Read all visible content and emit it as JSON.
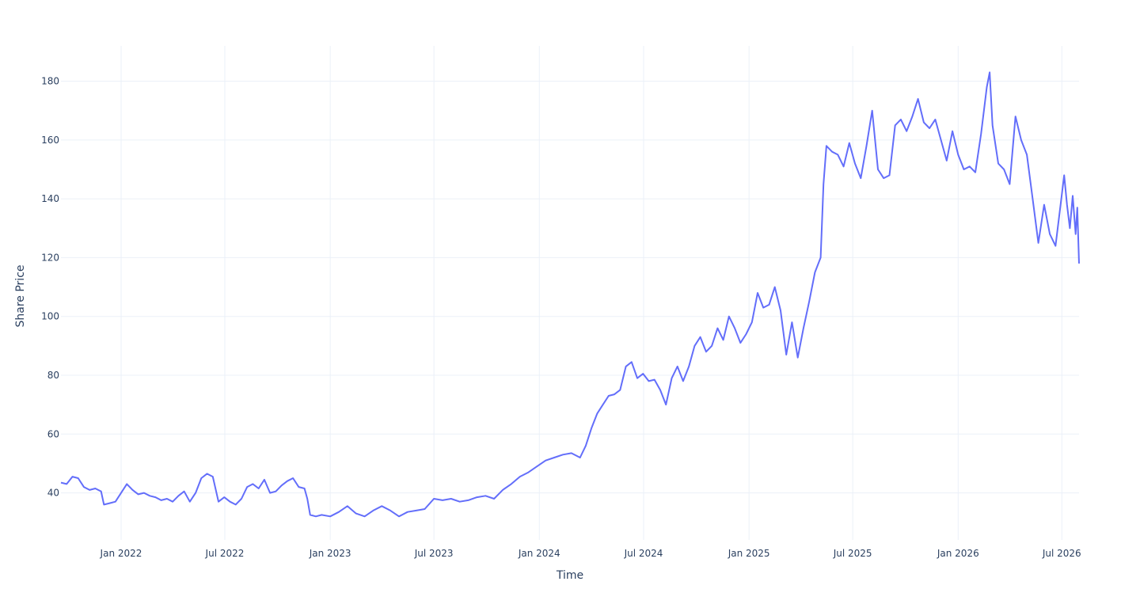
{
  "chart_data": {
    "type": "line",
    "title": "",
    "xlabel": "Time",
    "ylabel": "Share Price",
    "x_range": [
      "2021-09-18",
      "2026-07-31"
    ],
    "y_range": [
      24,
      192
    ],
    "y_ticks": [
      40,
      60,
      80,
      100,
      120,
      140,
      160,
      180
    ],
    "x_ticks": [
      {
        "date": "2022-01-01",
        "label": "Jan 2022"
      },
      {
        "date": "2022-07-01",
        "label": "Jul 2022"
      },
      {
        "date": "2023-01-01",
        "label": "Jan 2023"
      },
      {
        "date": "2023-07-01",
        "label": "Jul 2023"
      },
      {
        "date": "2024-01-01",
        "label": "Jan 2024"
      },
      {
        "date": "2024-07-01",
        "label": "Jul 2024"
      },
      {
        "date": "2025-01-01",
        "label": "Jan 2025"
      },
      {
        "date": "2025-07-01",
        "label": "Jul 2025"
      },
      {
        "date": "2026-01-01",
        "label": "Jan 2026"
      },
      {
        "date": "2026-07-01",
        "label": "Jul 2026"
      }
    ],
    "grid": true,
    "legend": "none",
    "line_color": "#636efa",
    "series": [
      {
        "name": "",
        "points": [
          [
            "2021-09-18",
            43.5
          ],
          [
            "2021-09-28",
            43.0
          ],
          [
            "2021-10-08",
            45.5
          ],
          [
            "2021-10-18",
            45.0
          ],
          [
            "2021-10-28",
            42.0
          ],
          [
            "2021-11-07",
            41.0
          ],
          [
            "2021-11-17",
            41.5
          ],
          [
            "2021-11-27",
            40.5
          ],
          [
            "2021-12-02",
            36.0
          ],
          [
            "2021-12-12",
            36.5
          ],
          [
            "2021-12-22",
            37.0
          ],
          [
            "2022-01-01",
            40.0
          ],
          [
            "2022-01-11",
            43.0
          ],
          [
            "2022-01-21",
            41.0
          ],
          [
            "2022-01-31",
            39.5
          ],
          [
            "2022-02-10",
            40.0
          ],
          [
            "2022-02-20",
            39.0
          ],
          [
            "2022-03-02",
            38.5
          ],
          [
            "2022-03-12",
            37.5
          ],
          [
            "2022-03-22",
            38.0
          ],
          [
            "2022-04-01",
            37.0
          ],
          [
            "2022-04-11",
            39.0
          ],
          [
            "2022-04-21",
            40.5
          ],
          [
            "2022-05-01",
            37.0
          ],
          [
            "2022-05-11",
            40.0
          ],
          [
            "2022-05-21",
            45.0
          ],
          [
            "2022-05-31",
            46.5
          ],
          [
            "2022-06-10",
            45.5
          ],
          [
            "2022-06-20",
            37.0
          ],
          [
            "2022-06-30",
            38.5
          ],
          [
            "2022-07-10",
            37.0
          ],
          [
            "2022-07-20",
            36.0
          ],
          [
            "2022-07-30",
            38.0
          ],
          [
            "2022-08-09",
            42.0
          ],
          [
            "2022-08-19",
            43.0
          ],
          [
            "2022-08-29",
            41.5
          ],
          [
            "2022-09-08",
            44.5
          ],
          [
            "2022-09-18",
            40.0
          ],
          [
            "2022-09-28",
            40.5
          ],
          [
            "2022-10-08",
            42.5
          ],
          [
            "2022-10-18",
            44.0
          ],
          [
            "2022-10-28",
            45.0
          ],
          [
            "2022-11-07",
            42.0
          ],
          [
            "2022-11-17",
            41.5
          ],
          [
            "2022-11-22",
            38.0
          ],
          [
            "2022-11-27",
            32.5
          ],
          [
            "2022-12-07",
            32.0
          ],
          [
            "2022-12-17",
            32.5
          ],
          [
            "2023-01-01",
            32.0
          ],
          [
            "2023-01-16",
            33.5
          ],
          [
            "2023-01-31",
            35.5
          ],
          [
            "2023-02-15",
            33.0
          ],
          [
            "2023-03-02",
            32.0
          ],
          [
            "2023-03-17",
            34.0
          ],
          [
            "2023-04-01",
            35.5
          ],
          [
            "2023-04-16",
            34.0
          ],
          [
            "2023-05-01",
            32.0
          ],
          [
            "2023-05-16",
            33.5
          ],
          [
            "2023-05-31",
            34.0
          ],
          [
            "2023-06-15",
            34.5
          ],
          [
            "2023-07-01",
            38.0
          ],
          [
            "2023-07-16",
            37.5
          ],
          [
            "2023-07-31",
            38.0
          ],
          [
            "2023-08-15",
            37.0
          ],
          [
            "2023-08-30",
            37.5
          ],
          [
            "2023-09-14",
            38.5
          ],
          [
            "2023-09-29",
            39.0
          ],
          [
            "2023-10-14",
            38.0
          ],
          [
            "2023-10-29",
            41.0
          ],
          [
            "2023-11-13",
            43.0
          ],
          [
            "2023-11-28",
            45.5
          ],
          [
            "2023-12-13",
            47.0
          ],
          [
            "2023-12-28",
            49.0
          ],
          [
            "2024-01-12",
            51.0
          ],
          [
            "2024-01-27",
            52.0
          ],
          [
            "2024-02-11",
            53.0
          ],
          [
            "2024-02-26",
            53.5
          ],
          [
            "2024-03-12",
            52.0
          ],
          [
            "2024-03-22",
            56.0
          ],
          [
            "2024-04-01",
            62.0
          ],
          [
            "2024-04-11",
            67.0
          ],
          [
            "2024-04-21",
            70.0
          ],
          [
            "2024-05-01",
            73.0
          ],
          [
            "2024-05-11",
            73.5
          ],
          [
            "2024-05-21",
            75.0
          ],
          [
            "2024-05-31",
            83.0
          ],
          [
            "2024-06-10",
            84.5
          ],
          [
            "2024-06-20",
            79.0
          ],
          [
            "2024-06-30",
            80.5
          ],
          [
            "2024-07-10",
            78.0
          ],
          [
            "2024-07-20",
            78.5
          ],
          [
            "2024-07-30",
            75.0
          ],
          [
            "2024-08-09",
            70.0
          ],
          [
            "2024-08-19",
            79.0
          ],
          [
            "2024-08-29",
            83.0
          ],
          [
            "2024-09-08",
            78.0
          ],
          [
            "2024-09-18",
            83.0
          ],
          [
            "2024-09-28",
            90.0
          ],
          [
            "2024-10-08",
            93.0
          ],
          [
            "2024-10-18",
            88.0
          ],
          [
            "2024-10-28",
            90.0
          ],
          [
            "2024-11-07",
            96.0
          ],
          [
            "2024-11-17",
            92.0
          ],
          [
            "2024-11-27",
            100.0
          ],
          [
            "2024-12-07",
            96.0
          ],
          [
            "2024-12-17",
            91.0
          ],
          [
            "2024-12-27",
            94.0
          ],
          [
            "2025-01-06",
            98.0
          ],
          [
            "2025-01-16",
            108.0
          ],
          [
            "2025-01-26",
            103.0
          ],
          [
            "2025-02-05",
            104.0
          ],
          [
            "2025-02-15",
            110.0
          ],
          [
            "2025-02-25",
            102.0
          ],
          [
            "2025-03-07",
            87.0
          ],
          [
            "2025-03-17",
            98.0
          ],
          [
            "2025-03-27",
            86.0
          ],
          [
            "2025-04-06",
            96.0
          ],
          [
            "2025-04-16",
            105.0
          ],
          [
            "2025-04-26",
            115.0
          ],
          [
            "2025-05-06",
            120.0
          ],
          [
            "2025-05-11",
            145.0
          ],
          [
            "2025-05-16",
            158.0
          ],
          [
            "2025-05-26",
            156.0
          ],
          [
            "2025-06-05",
            155.0
          ],
          [
            "2025-06-15",
            151.0
          ],
          [
            "2025-06-25",
            159.0
          ],
          [
            "2025-07-05",
            152.0
          ],
          [
            "2025-07-15",
            147.0
          ],
          [
            "2025-07-25",
            158.0
          ],
          [
            "2025-08-04",
            170.0
          ],
          [
            "2025-08-14",
            150.0
          ],
          [
            "2025-08-24",
            147.0
          ],
          [
            "2025-09-03",
            148.0
          ],
          [
            "2025-09-13",
            165.0
          ],
          [
            "2025-09-23",
            167.0
          ],
          [
            "2025-10-03",
            163.0
          ],
          [
            "2025-10-13",
            168.0
          ],
          [
            "2025-10-23",
            174.0
          ],
          [
            "2025-11-02",
            166.0
          ],
          [
            "2025-11-12",
            164.0
          ],
          [
            "2025-11-22",
            167.0
          ],
          [
            "2025-12-02",
            160.0
          ],
          [
            "2025-12-12",
            153.0
          ],
          [
            "2025-12-22",
            163.0
          ],
          [
            "2026-01-01",
            155.0
          ],
          [
            "2026-01-11",
            150.0
          ],
          [
            "2026-01-21",
            151.0
          ],
          [
            "2026-01-31",
            149.0
          ],
          [
            "2026-02-10",
            162.0
          ],
          [
            "2026-02-20",
            178.0
          ],
          [
            "2026-02-25",
            183.0
          ],
          [
            "2026-03-02",
            165.0
          ],
          [
            "2026-03-12",
            152.0
          ],
          [
            "2026-03-22",
            150.0
          ],
          [
            "2026-04-01",
            145.0
          ],
          [
            "2026-04-11",
            168.0
          ],
          [
            "2026-04-21",
            160.0
          ],
          [
            "2026-05-01",
            155.0
          ],
          [
            "2026-05-11",
            140.0
          ],
          [
            "2026-05-21",
            125.0
          ],
          [
            "2026-05-31",
            138.0
          ],
          [
            "2026-06-10",
            128.0
          ],
          [
            "2026-06-20",
            124.0
          ],
          [
            "2026-06-30",
            140.0
          ],
          [
            "2026-07-05",
            148.0
          ],
          [
            "2026-07-10",
            138.0
          ],
          [
            "2026-07-15",
            130.0
          ],
          [
            "2026-07-20",
            141.0
          ],
          [
            "2026-07-25",
            128.0
          ],
          [
            "2026-07-28",
            137.0
          ],
          [
            "2026-07-31",
            118.0
          ]
        ]
      }
    ]
  }
}
